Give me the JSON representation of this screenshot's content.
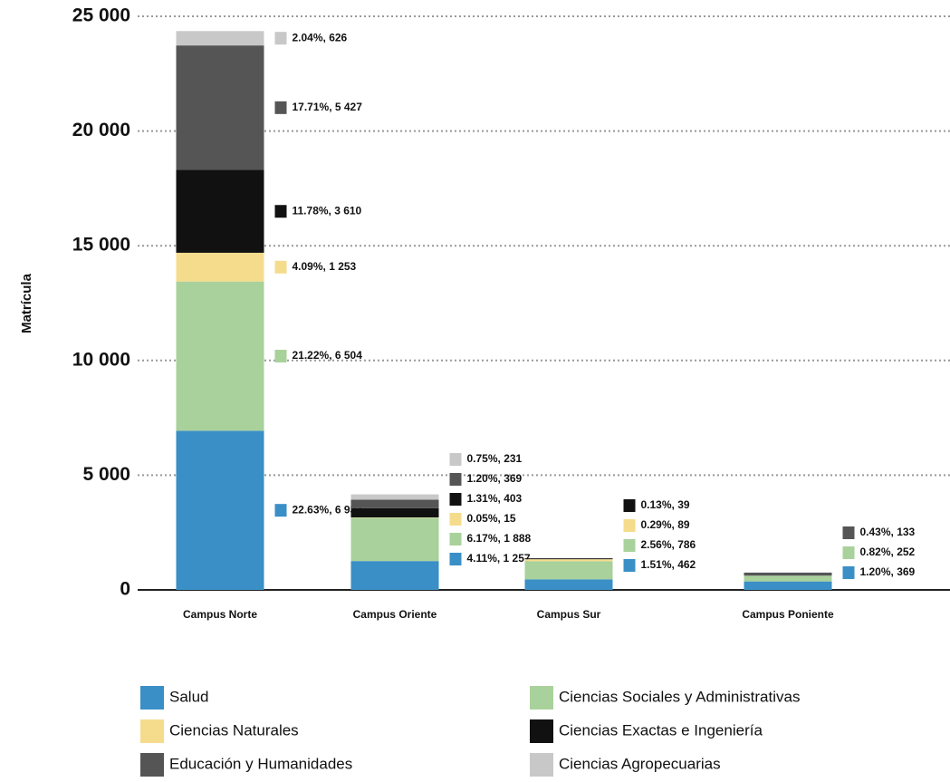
{
  "chart_data": {
    "type": "stacked-bar",
    "y_label": "Matrícula",
    "categories": [
      "Campus Norte",
      "Campus Oriente",
      "Campus Sur",
      "Campus Poniente"
    ],
    "series": [
      {
        "name": "Salud",
        "color": "#3a8fc6",
        "values": [
          6937,
          1257,
          462,
          369
        ],
        "value_labels": [
          "22.63%, 6 937",
          "4.11%, 1 257",
          "1.51%, 462",
          "1.20%, 369"
        ]
      },
      {
        "name": "Ciencias Sociales y Administrativas",
        "color": "#a9d19b",
        "values": [
          6504,
          1888,
          786,
          252
        ],
        "value_labels": [
          "21.22%, 6 504",
          "6.17%, 1 888",
          "2.56%, 786",
          "0.82%, 252"
        ]
      },
      {
        "name": "Ciencias Naturales",
        "color": "#f5dc8c",
        "values": [
          1253,
          15,
          89,
          null
        ],
        "value_labels": [
          "4.09%, 1 253",
          "0.05%, 15",
          "0.29%, 89",
          null
        ]
      },
      {
        "name": "Ciencias Exactas e Ingeniería",
        "color": "#111111",
        "values": [
          3610,
          403,
          39,
          null
        ],
        "value_labels": [
          "11.78%, 3 610",
          "1.31%, 403",
          "0.13%, 39",
          null
        ]
      },
      {
        "name": "Educación y Humanidades",
        "color": "#555555",
        "values": [
          5427,
          369,
          null,
          133
        ],
        "value_labels": [
          "17.71%, 5 427",
          "1.20%, 369",
          null,
          "0.43%, 133"
        ]
      },
      {
        "name": "Ciencias Agropecuarias",
        "color": "#c8c8c8",
        "values": [
          626,
          231,
          null,
          null
        ],
        "value_labels": [
          "2.04%, 626",
          "0.75%, 231",
          null,
          null
        ]
      }
    ],
    "ylim": [
      0,
      25000
    ],
    "yticks": [
      0,
      {
        "value": 5000,
        "label": "5 000"
      },
      {
        "value": 10000,
        "label": "10 000"
      },
      {
        "value": 15000,
        "label": "15 000"
      },
      {
        "value": 20000,
        "label": "20 000"
      },
      {
        "value": 25000,
        "label": "25 000"
      }
    ],
    "grid": true
  }
}
